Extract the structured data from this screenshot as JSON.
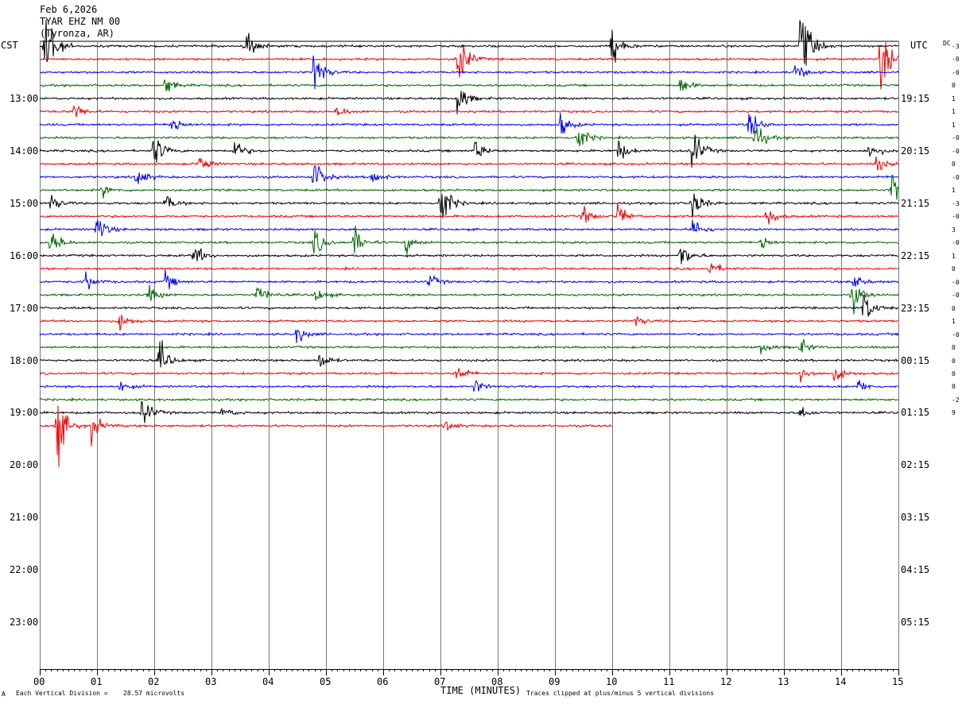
{
  "header": {
    "date": "Feb 6,2026",
    "station": "TYAR EHZ NM 00",
    "location": "(Tyronza, AR)"
  },
  "left_zone": "CST",
  "right_zone": "UTC",
  "dc_label": "DC",
  "footer": {
    "scale_prefix": "Each Vertical Division =",
    "scale_value": "28.57 microvolts",
    "clip_note": "Traces clipped at plus/minus 5 vertical divisions",
    "corner_mark": "A"
  },
  "chart_data": {
    "type": "line",
    "title": "Feb 6,2026",
    "xlabel": "TIME (MINUTES)",
    "x_ticks": [
      "00",
      "01",
      "02",
      "03",
      "04",
      "05",
      "06",
      "07",
      "08",
      "09",
      "10",
      "11",
      "12",
      "13",
      "14",
      "15"
    ],
    "xlim": [
      0,
      15
    ],
    "left_hour_labels": [
      "13:00",
      "14:00",
      "15:00",
      "16:00",
      "17:00",
      "18:00",
      "19:00",
      "20:00",
      "21:00",
      "22:00",
      "23:00"
    ],
    "right_hour_labels": [
      "19:15",
      "20:15",
      "21:15",
      "22:15",
      "23:15",
      "00:15",
      "01:15",
      "02:15",
      "03:15",
      "04:15",
      "05:15"
    ],
    "trace_colors": [
      "#000000",
      "#ee0000",
      "#0000ee",
      "#006600"
    ],
    "minutes_per_line": 15,
    "lines_per_hour": 4,
    "total_lines": 48,
    "recorded_lines": 30,
    "last_line_end_minute": 10,
    "dc_offsets": [
      "-3",
      "-0",
      "-0",
      "0",
      "1",
      "1",
      "1",
      "-0",
      "-0",
      "0",
      "-0",
      "1",
      "-3",
      "-0",
      "3",
      "-0",
      "1",
      "0",
      "-0",
      "-0",
      "0",
      "1",
      "-0",
      "0",
      "0",
      "0",
      "0",
      "-2",
      "9"
    ],
    "grid": true,
    "events": [
      {
        "line": 0,
        "minute": 0.1,
        "amp": 8
      },
      {
        "line": 0,
        "minute": 3.6,
        "amp": 2.5
      },
      {
        "line": 0,
        "minute": 10.0,
        "amp": 3
      },
      {
        "line": 0,
        "minute": 13.3,
        "amp": 7
      },
      {
        "line": 1,
        "minute": 7.3,
        "amp": 5
      },
      {
        "line": 1,
        "minute": 14.7,
        "amp": 6
      },
      {
        "line": 2,
        "minute": 4.8,
        "amp": 4
      },
      {
        "line": 2,
        "minute": 13.2,
        "amp": 1.5
      },
      {
        "line": 3,
        "minute": 2.2,
        "amp": 1.5
      },
      {
        "line": 3,
        "minute": 11.2,
        "amp": 1.5
      },
      {
        "line": 4,
        "minute": 7.3,
        "amp": 3
      },
      {
        "line": 5,
        "minute": 0.6,
        "amp": 1.5
      },
      {
        "line": 5,
        "minute": 5.2,
        "amp": 1
      },
      {
        "line": 6,
        "minute": 2.3,
        "amp": 2
      },
      {
        "line": 6,
        "minute": 9.1,
        "amp": 2
      },
      {
        "line": 6,
        "minute": 12.4,
        "amp": 2.5
      },
      {
        "line": 7,
        "minute": 9.4,
        "amp": 2.5
      },
      {
        "line": 7,
        "minute": 12.5,
        "amp": 2.5
      },
      {
        "line": 8,
        "minute": 2.0,
        "amp": 3
      },
      {
        "line": 8,
        "minute": 3.4,
        "amp": 2
      },
      {
        "line": 8,
        "minute": 7.6,
        "amp": 2
      },
      {
        "line": 8,
        "minute": 10.1,
        "amp": 2
      },
      {
        "line": 8,
        "minute": 11.4,
        "amp": 4
      },
      {
        "line": 8,
        "minute": 14.5,
        "amp": 1.5
      },
      {
        "line": 9,
        "minute": 2.8,
        "amp": 1.5
      },
      {
        "line": 9,
        "minute": 14.6,
        "amp": 1.5
      },
      {
        "line": 10,
        "minute": 1.7,
        "amp": 2
      },
      {
        "line": 10,
        "minute": 4.8,
        "amp": 3
      },
      {
        "line": 10,
        "minute": 5.8,
        "amp": 1.5
      },
      {
        "line": 11,
        "minute": 1.1,
        "amp": 1
      },
      {
        "line": 11,
        "minute": 14.9,
        "amp": 3.5
      },
      {
        "line": 12,
        "minute": 0.2,
        "amp": 1.5
      },
      {
        "line": 12,
        "minute": 2.2,
        "amp": 1.5
      },
      {
        "line": 12,
        "minute": 7.0,
        "amp": 5
      },
      {
        "line": 12,
        "minute": 11.4,
        "amp": 3
      },
      {
        "line": 13,
        "minute": 9.5,
        "amp": 1.5
      },
      {
        "line": 13,
        "minute": 10.1,
        "amp": 2
      },
      {
        "line": 13,
        "minute": 12.7,
        "amp": 2
      },
      {
        "line": 14,
        "minute": 1.0,
        "amp": 2.5
      },
      {
        "line": 14,
        "minute": 11.4,
        "amp": 2
      },
      {
        "line": 15,
        "minute": 0.2,
        "amp": 2.5
      },
      {
        "line": 15,
        "minute": 4.8,
        "amp": 2.5
      },
      {
        "line": 15,
        "minute": 5.5,
        "amp": 2.5
      },
      {
        "line": 15,
        "minute": 6.4,
        "amp": 1.5
      },
      {
        "line": 15,
        "minute": 12.6,
        "amp": 1.5
      },
      {
        "line": 16,
        "minute": 2.7,
        "amp": 2
      },
      {
        "line": 16,
        "minute": 11.2,
        "amp": 2.5
      },
      {
        "line": 17,
        "minute": 11.7,
        "amp": 1.5
      },
      {
        "line": 18,
        "minute": 0.8,
        "amp": 1.5
      },
      {
        "line": 18,
        "minute": 2.2,
        "amp": 1.5
      },
      {
        "line": 18,
        "minute": 6.8,
        "amp": 1.2
      },
      {
        "line": 18,
        "minute": 14.2,
        "amp": 1.5
      },
      {
        "line": 19,
        "minute": 1.9,
        "amp": 1.5
      },
      {
        "line": 19,
        "minute": 3.8,
        "amp": 2
      },
      {
        "line": 19,
        "minute": 4.8,
        "amp": 1.5
      },
      {
        "line": 19,
        "minute": 14.2,
        "amp": 2.5
      },
      {
        "line": 20,
        "minute": 14.4,
        "amp": 3
      },
      {
        "line": 21,
        "minute": 1.4,
        "amp": 1.5
      },
      {
        "line": 21,
        "minute": 10.4,
        "amp": 1
      },
      {
        "line": 22,
        "minute": 4.5,
        "amp": 1.5
      },
      {
        "line": 23,
        "minute": 12.6,
        "amp": 1.2
      },
      {
        "line": 23,
        "minute": 13.3,
        "amp": 1.2
      },
      {
        "line": 24,
        "minute": 2.1,
        "amp": 3
      },
      {
        "line": 24,
        "minute": 4.9,
        "amp": 1.5
      },
      {
        "line": 25,
        "minute": 7.3,
        "amp": 1.5
      },
      {
        "line": 25,
        "minute": 13.3,
        "amp": 1.5
      },
      {
        "line": 25,
        "minute": 13.9,
        "amp": 1.5
      },
      {
        "line": 26,
        "minute": 1.4,
        "amp": 1
      },
      {
        "line": 26,
        "minute": 7.6,
        "amp": 1.2
      },
      {
        "line": 26,
        "minute": 14.3,
        "amp": 1.2
      },
      {
        "line": 28,
        "minute": 1.8,
        "amp": 2.5
      },
      {
        "line": 28,
        "minute": 3.2,
        "amp": 1
      },
      {
        "line": 28,
        "minute": 13.3,
        "amp": 1
      },
      {
        "line": 29,
        "minute": 0.3,
        "amp": 6
      },
      {
        "line": 29,
        "minute": 0.9,
        "amp": 2.5
      },
      {
        "line": 29,
        "minute": 7.1,
        "amp": 1
      }
    ]
  }
}
